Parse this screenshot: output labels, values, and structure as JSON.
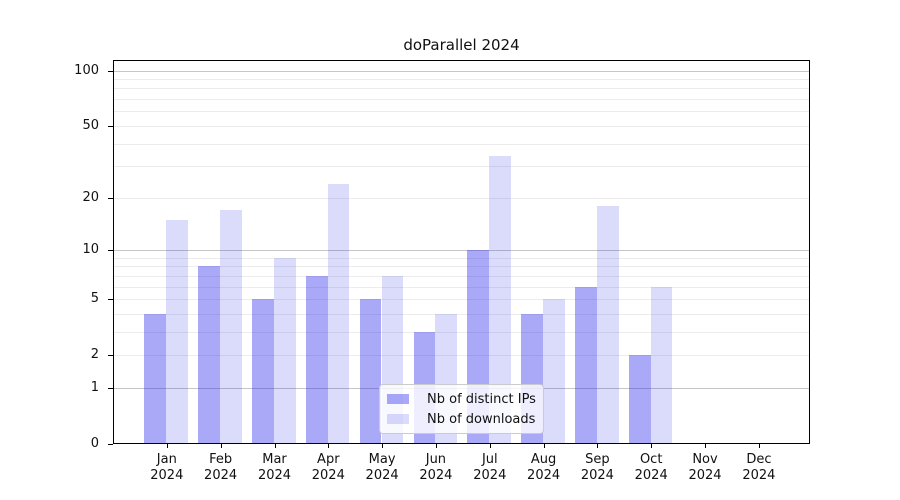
{
  "chart_data": {
    "type": "bar",
    "title": "doParallel 2024",
    "x_categories": [
      "Jan",
      "Feb",
      "Mar",
      "Apr",
      "May",
      "Jun",
      "Jul",
      "Aug",
      "Sep",
      "Oct",
      "Nov",
      "Dec"
    ],
    "x_year": "2024",
    "series": [
      {
        "name": "Nb of distinct IPs",
        "color": "rgba(40,40,235,0.40)",
        "values": [
          4,
          8,
          5,
          7,
          5,
          3,
          10,
          4,
          6,
          2,
          0,
          0
        ]
      },
      {
        "name": "Nb of downloads",
        "color": "rgba(40,40,235,0.17)",
        "values": [
          15,
          17,
          9,
          24,
          7,
          4,
          34,
          5,
          18,
          6,
          0,
          0
        ]
      }
    ],
    "y_scale": "log1p",
    "y_ticks": [
      0,
      1,
      2,
      5,
      10,
      20,
      50,
      100
    ],
    "y_major_gridlines": [
      1,
      10,
      100
    ],
    "y_minor_gridlines": [
      2,
      3,
      4,
      5,
      6,
      7,
      8,
      9,
      20,
      30,
      40,
      50,
      60,
      70,
      80,
      90
    ],
    "y_max": 114,
    "legend_position": "lower center",
    "grid": "on",
    "colors": {
      "bar_distinct_ips": "#a9a9f8",
      "bar_downloads": "#d9d9fc",
      "major_grid": "#c6c6c6",
      "minor_grid": "#ececec",
      "spine": "#000000"
    }
  }
}
